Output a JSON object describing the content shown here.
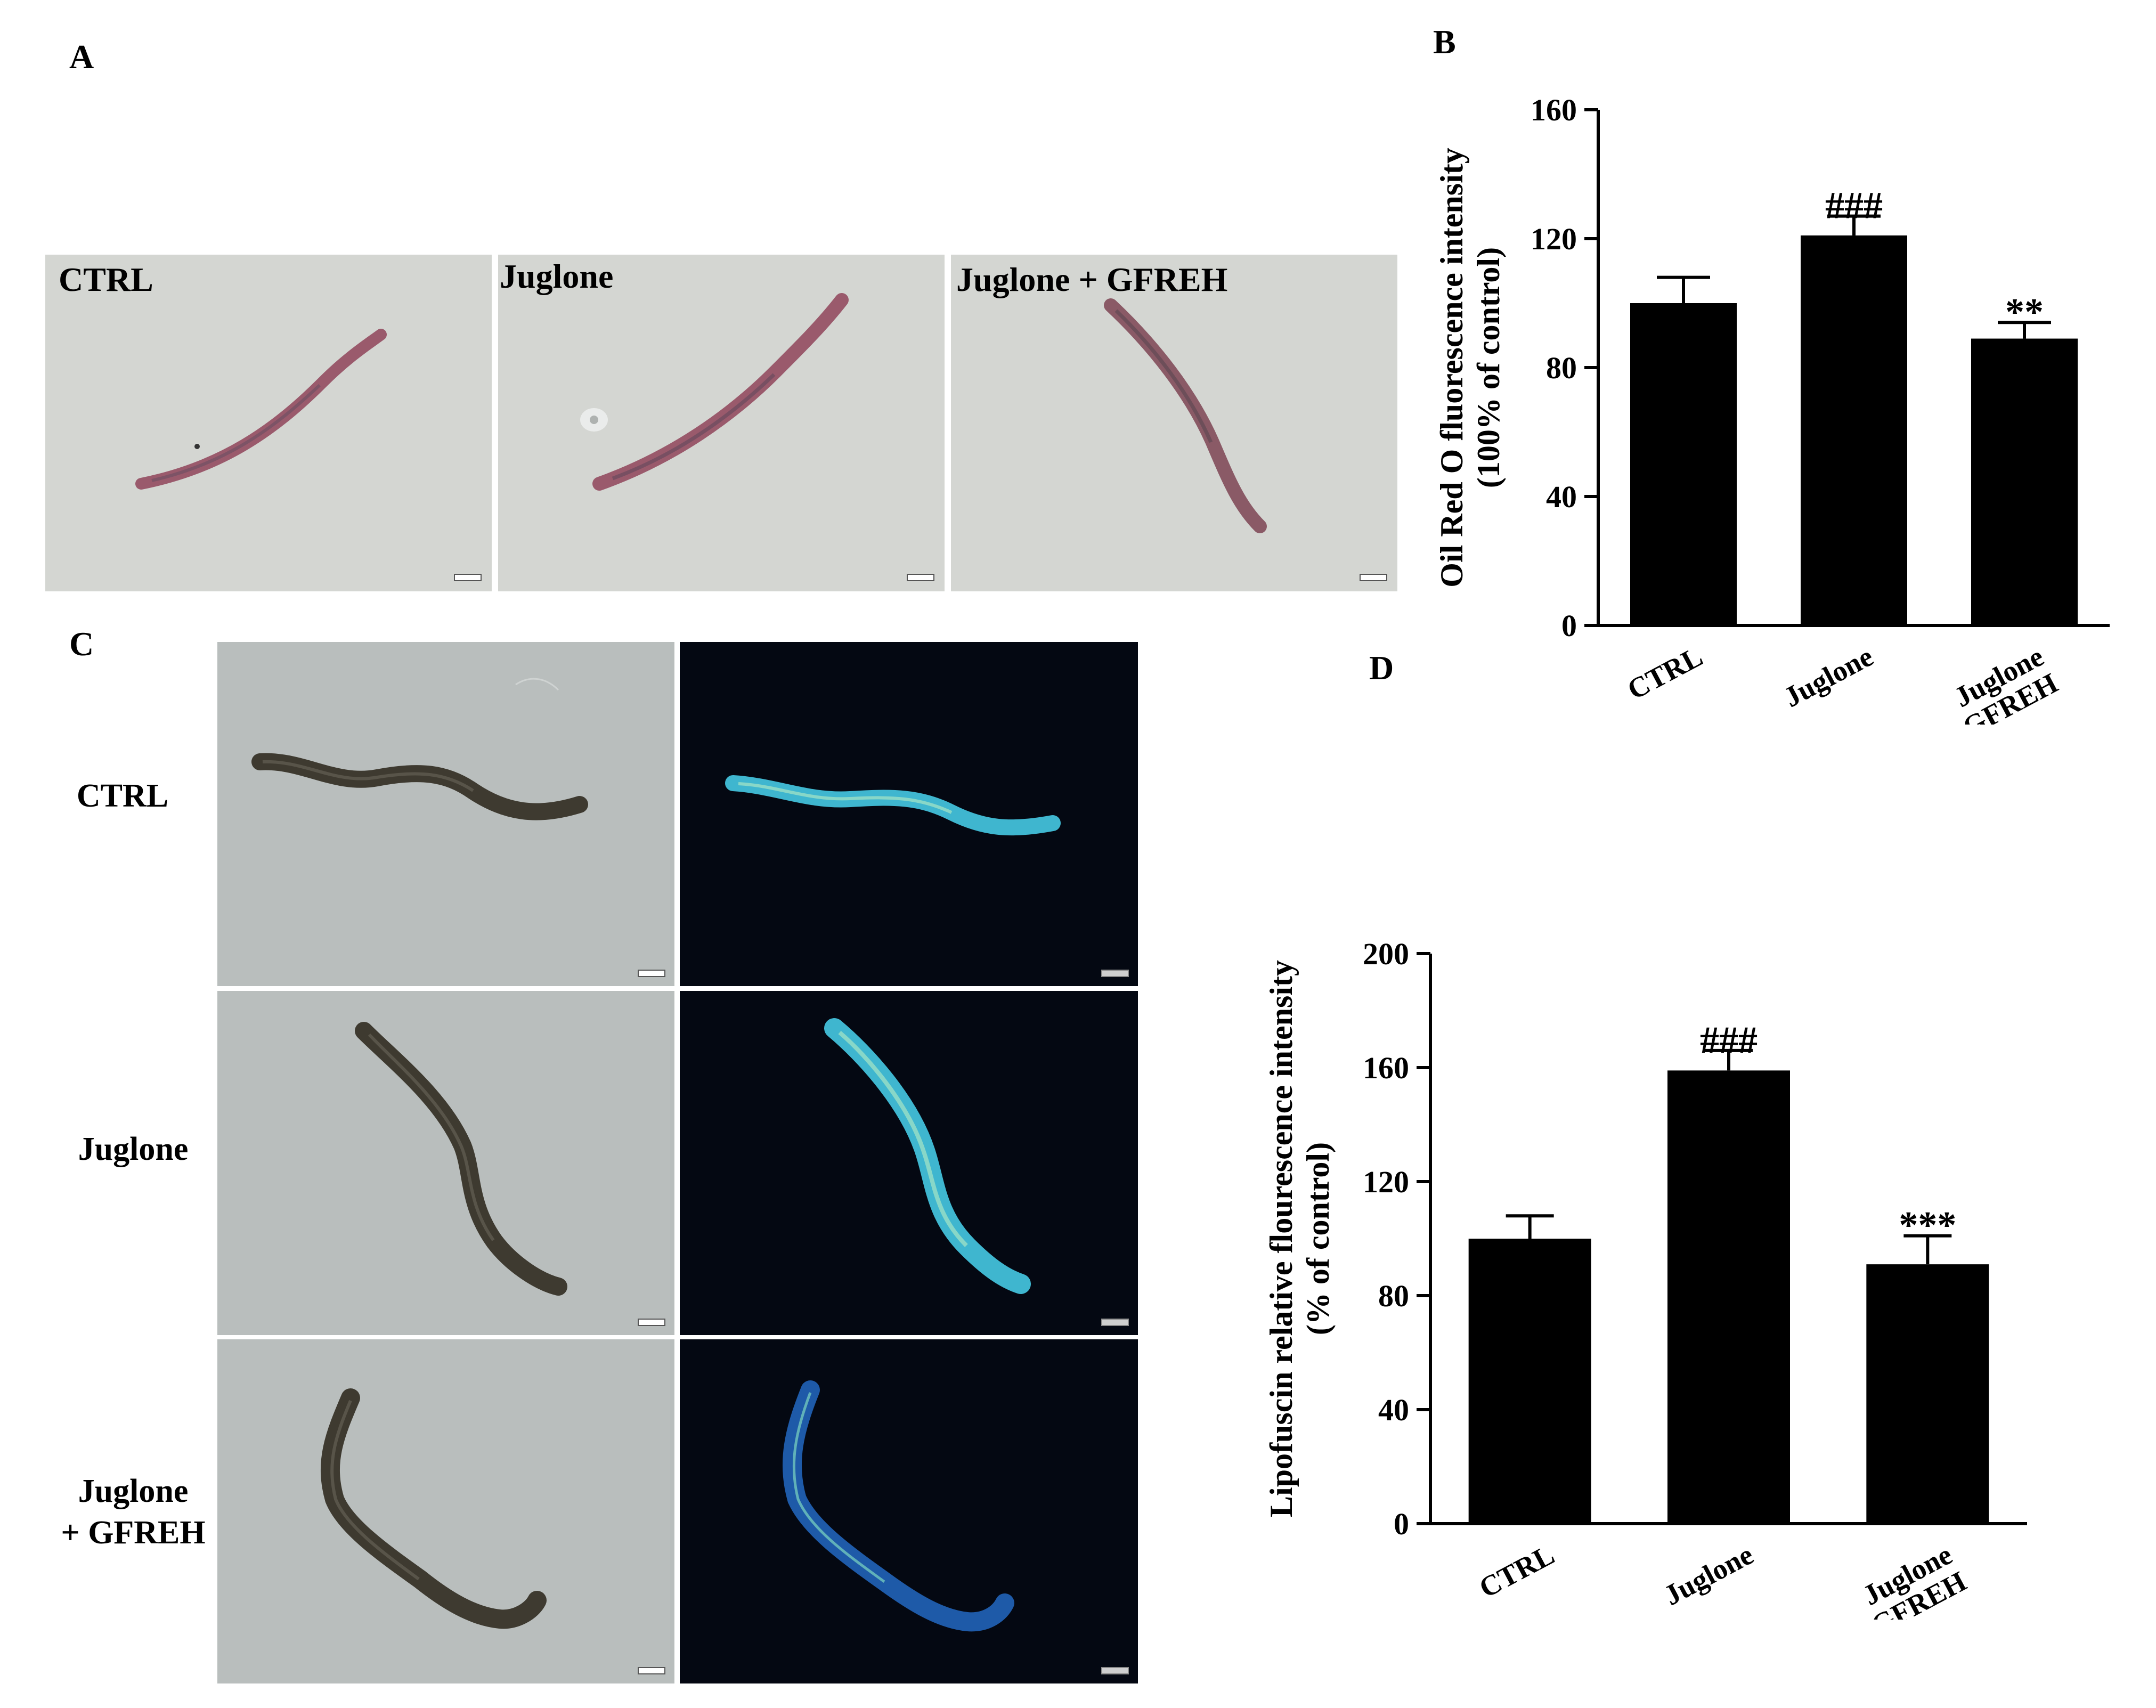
{
  "panels": {
    "a": {
      "letter": "A",
      "images": [
        {
          "label": "CTRL",
          "stain": "oil-red-o",
          "worm": "brightfield-purple"
        },
        {
          "label": "Juglone",
          "stain": "oil-red-o",
          "worm": "brightfield-purple"
        },
        {
          "label": "Juglone + GFREH",
          "stain": "oil-red-o",
          "worm": "brightfield-purple"
        }
      ]
    },
    "c": {
      "letter": "C",
      "rows": [
        {
          "label_lines": [
            "CTRL"
          ]
        },
        {
          "label_lines": [
            "Juglone"
          ]
        },
        {
          "label_lines": [
            "Juglone",
            "+ GFREH"
          ]
        }
      ],
      "columns": [
        "brightfield",
        "fluorescence"
      ]
    }
  },
  "chart_data": [
    {
      "panel": "B",
      "type": "bar",
      "categories": [
        [
          "CTRL"
        ],
        [
          "Juglone"
        ],
        [
          "Juglone",
          "+ GFREH"
        ]
      ],
      "values": [
        100,
        121,
        89
      ],
      "errors": [
        8,
        6,
        5
      ],
      "significance": [
        "",
        "###",
        "**"
      ],
      "ylabel_lines": [
        "Oil Red O fluorescence intensity",
        "(100% of control)"
      ],
      "yticks": [
        "0",
        "40",
        "80",
        "120",
        "160"
      ],
      "ylim": [
        0,
        160
      ],
      "bar_color": "#000000"
    },
    {
      "panel": "D",
      "type": "bar",
      "categories": [
        [
          "CTRL"
        ],
        [
          "Juglone"
        ],
        [
          "Juglone",
          "+ GFREH"
        ]
      ],
      "values": [
        100,
        159,
        91
      ],
      "errors": [
        8,
        7,
        10
      ],
      "significance": [
        "",
        "###",
        "***"
      ],
      "ylabel_lines": [
        "Lipofuscin relative flourescence intensity",
        "(% of control)"
      ],
      "yticks": [
        "0",
        "40",
        "80",
        "120",
        "160",
        "200"
      ],
      "ylim": [
        0,
        200
      ],
      "bar_color": "#000000"
    }
  ],
  "colors": {
    "brightfield_bg": "#d4d6d2",
    "brightfield_gray": "#b9bebd",
    "fluorescence_bg": "#040812",
    "oil_red_worm": "#9a5a6c",
    "dark_worm": "#3e3a30",
    "fluor_worm": "#3fb6cf"
  }
}
